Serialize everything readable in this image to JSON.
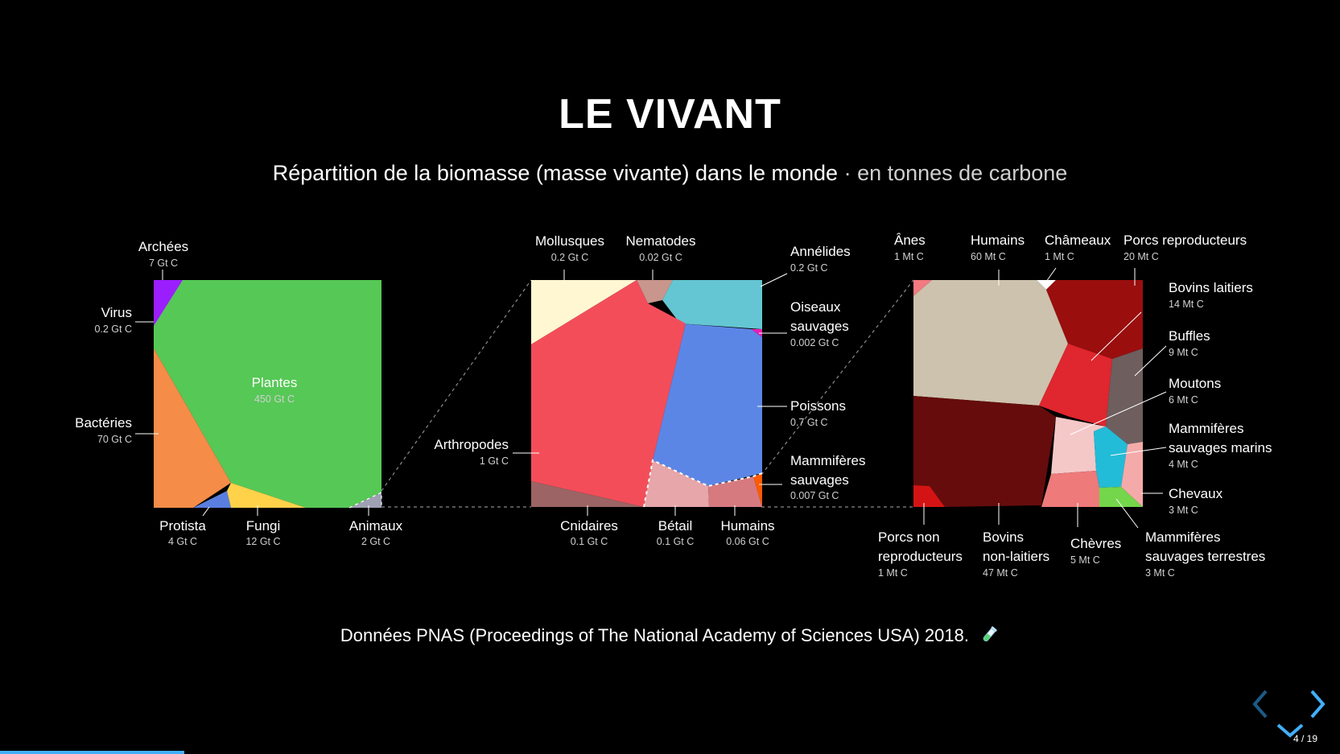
{
  "slide": {
    "title": "LE VIVANT",
    "subtitle_main": "Répartition de la biomasse (masse vivante) dans le monde",
    "subtitle_sep": " · ",
    "subtitle_unit": "en tonnes de carbone",
    "source": "Données PNAS (Proceedings of The National Academy of Sciences USA) 2018.",
    "source_icon": "test-tube-icon"
  },
  "navigation": {
    "prev_icon": "chevron-left-icon",
    "next_icon": "chevron-right-icon",
    "down_icon": "chevron-down-icon",
    "page_number": "4 / 19",
    "progress": 0.1375,
    "accent_color": "#42affa"
  },
  "chart_data": [
    {
      "type": "voronoi-treemap",
      "segments": [
        {
          "name": "Plantes",
          "value": "450 Gt C",
          "color": "#56c856"
        },
        {
          "name": "Bactéries",
          "value": "70 Gt C",
          "color": "#f58c48"
        },
        {
          "name": "Fungi",
          "value": "12 Gt C",
          "color": "#ffd24a"
        },
        {
          "name": "Archées",
          "value": "7 Gt C",
          "color": "#9b1eff"
        },
        {
          "name": "Protista",
          "value": "4 Gt C",
          "color": "#5a7ee0"
        },
        {
          "name": "Animaux",
          "value": "2 Gt C",
          "color": "#a0a0b4"
        },
        {
          "name": "Virus",
          "value": "0.2 Gt C",
          "color": "#56c856"
        }
      ]
    },
    {
      "type": "voronoi-treemap",
      "segments": [
        {
          "name": "Arthropodes",
          "value": "1 Gt C",
          "color": "#f44d5a"
        },
        {
          "name": "Poissons",
          "value": "0.7 Gt C",
          "color": "#5c86e6"
        },
        {
          "name": "Mollusques",
          "value": "0.2 Gt C",
          "color": "#fff6d2"
        },
        {
          "name": "Annélides",
          "value": "0.2 Gt C",
          "color": "#64c6d2"
        },
        {
          "name": "Cnidaires",
          "value": "0.1 Gt C",
          "color": "#9c6464"
        },
        {
          "name": "Bétail",
          "value": "0.1 Gt C",
          "color": "#e6a6aa"
        },
        {
          "name": "Humains",
          "value": "0.06 Gt C",
          "color": "#d67a80"
        },
        {
          "name": "Nematodes",
          "value": "0.02 Gt C",
          "color": "#c8968c"
        },
        {
          "name": "Mammifères sauvages",
          "value": "0.007 Gt C",
          "color": "#ff5a00"
        },
        {
          "name": "Oiseaux sauvages",
          "value": "0.002 Gt C",
          "color": "#e61eb4"
        }
      ]
    },
    {
      "type": "voronoi-treemap",
      "segments": [
        {
          "name": "Humains",
          "value": "60 Mt C",
          "color": "#cdc2ad"
        },
        {
          "name": "Bovins non-laitiers",
          "value": "47 Mt C",
          "color": "#660c0c"
        },
        {
          "name": "Porcs reproducteurs",
          "value": "20 Mt C",
          "color": "#9a0e0e"
        },
        {
          "name": "Bovins laitiers",
          "value": "14 Mt C",
          "color": "#e0262e"
        },
        {
          "name": "Buffles",
          "value": "9 Mt C",
          "color": "#6e5e5e"
        },
        {
          "name": "Moutons",
          "value": "6 Mt C",
          "color": "#f5c8c8"
        },
        {
          "name": "Chèvres",
          "value": "5 Mt C",
          "color": "#ee7a7a"
        },
        {
          "name": "Mammifères sauvages marins",
          "value": "4 Mt C",
          "color": "#22bcd8"
        },
        {
          "name": "Chevaux",
          "value": "3 Mt C",
          "color": "#f5aaaa"
        },
        {
          "name": "Mammifères sauvages terrestres",
          "value": "3 Mt C",
          "color": "#74d64a"
        },
        {
          "name": "Ânes",
          "value": "1 Mt C",
          "color": "#f27a80"
        },
        {
          "name": "Châmeaux",
          "value": "1 Mt C",
          "color": "#ffffff"
        },
        {
          "name": "Porcs non reproducteurs",
          "value": "1 Mt C",
          "color": "#d41414"
        }
      ]
    }
  ]
}
